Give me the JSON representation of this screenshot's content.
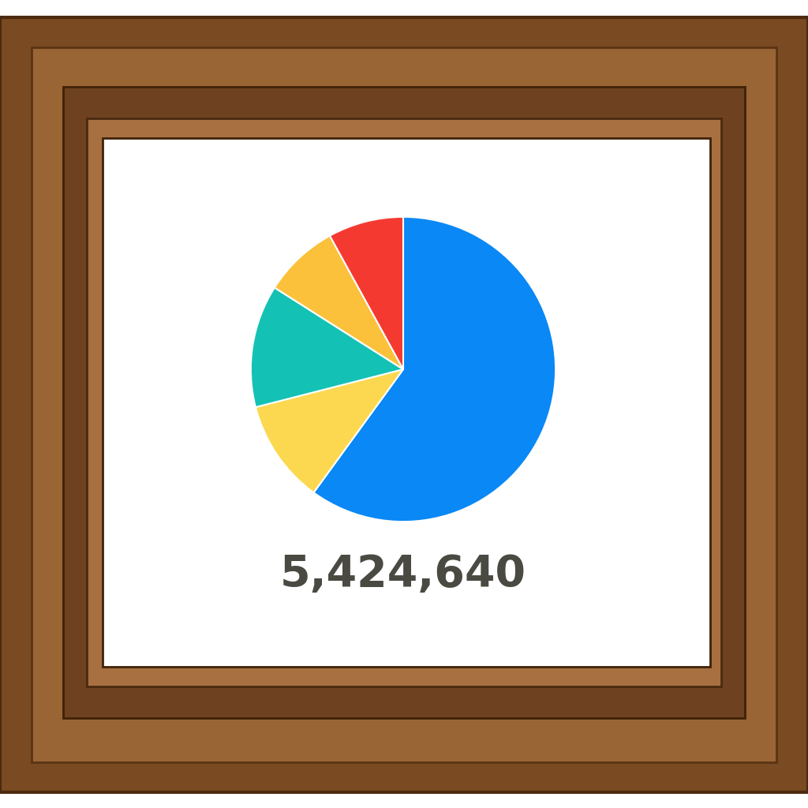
{
  "chart_data": {
    "type": "pie",
    "values": [
      60,
      11,
      13,
      8,
      8
    ],
    "colors": [
      "#0a88f5",
      "#fbd84f",
      "#13c2b5",
      "#fbc13a",
      "#f43a30"
    ],
    "annotations": [
      "5,424,640"
    ]
  }
}
